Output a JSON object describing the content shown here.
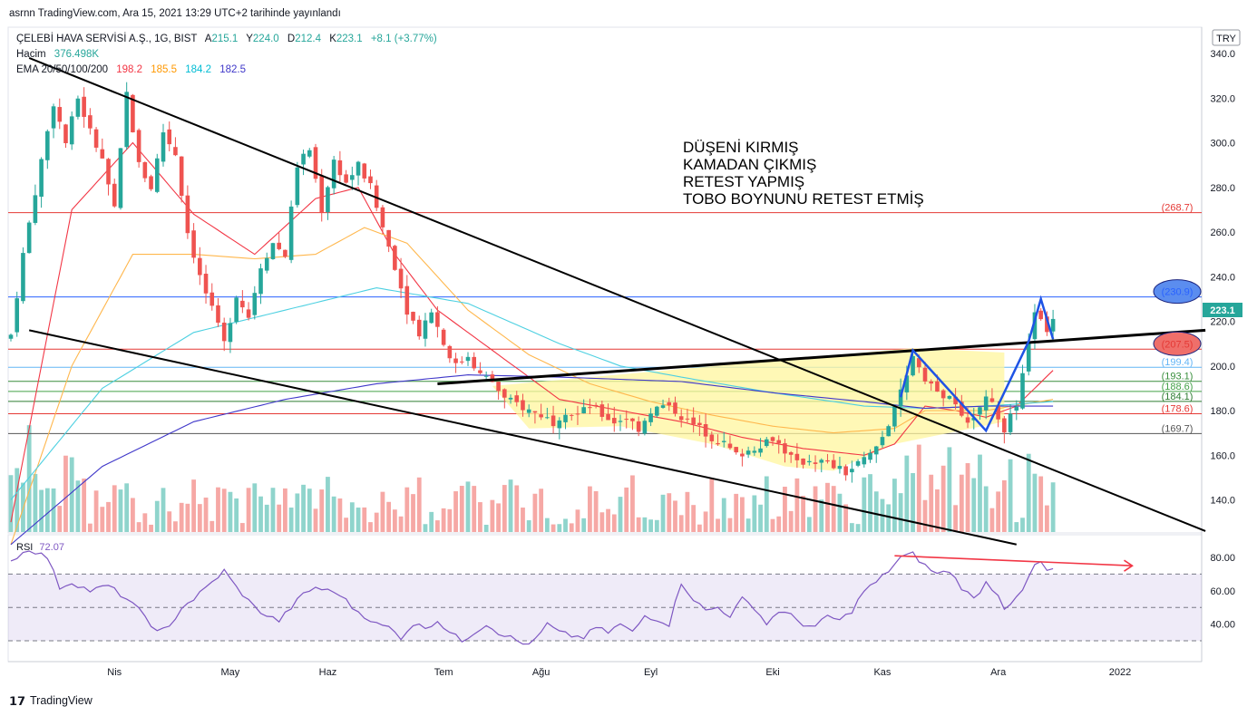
{
  "header": "asrnn TradingView.com, Ara 15, 2021 13:29 UTC+2 tarihinde yayınlandı",
  "legend": {
    "symbol": "ÇELEBİ HAVA SERVİSİ A.Ş., 1G, BIST",
    "ohlc": [
      {
        "k": "A",
        "v": "215.1"
      },
      {
        "k": "Y",
        "v": "224.0"
      },
      {
        "k": "D",
        "v": "212.4"
      },
      {
        "k": "K",
        "v": "223.1"
      }
    ],
    "change": "+8.1 (+3.77%)",
    "volume_label": "Hacim",
    "volume_value": "376.498K",
    "ema_label": "EMA 20/50/100/200",
    "ema_values": [
      {
        "v": "198.2",
        "color": "#f23645"
      },
      {
        "v": "185.5",
        "color": "#ff9800"
      },
      {
        "v": "184.2",
        "color": "#00bcd4"
      },
      {
        "v": "182.5",
        "color": "#3f37c9"
      }
    ]
  },
  "currency": "TRY",
  "annotation": [
    "DÜŞENİ KIRMIŞ",
    "KAMADAN ÇIKMIŞ",
    "RETEST YAPMIŞ",
    "TOBO BOYNUNU RETEST ETMİŞ"
  ],
  "price_tag": "223.1",
  "rsi_label": "RSI",
  "rsi_value": "72.07",
  "brand": "TradingView",
  "colors": {
    "up": "#26a69a",
    "down": "#ef5350",
    "rsi": "#7e57c2",
    "tobo": "#fff59d",
    "pattern": "#1e53e5"
  },
  "chart_data": {
    "type": "candlestick",
    "x_ticks": [
      "Nis",
      "May",
      "Haz",
      "Tem",
      "Ağu",
      "Eyl",
      "Eki",
      "Kas",
      "Ara",
      "2022"
    ],
    "y_range": [
      120,
      345
    ],
    "y_ticks": [
      140,
      160,
      180,
      200,
      220,
      240,
      260,
      280,
      300,
      320,
      340
    ],
    "rsi_ticks": [
      40,
      60,
      80
    ],
    "rsi_levels": [
      30,
      50,
      70
    ],
    "levels": [
      {
        "value": 268.7,
        "label": "(268.7)",
        "color": "#e53935"
      },
      {
        "value": 230.9,
        "label": "(230.9)",
        "color": "#2962ff",
        "badge": true
      },
      {
        "value": 207.5,
        "label": "(207.5)",
        "color": "#e53935",
        "badge": true
      },
      {
        "value": 199.4,
        "label": "(199.4)",
        "color": "#64b5f6"
      },
      {
        "value": 193.1,
        "label": "(193.1)",
        "color": "#388e3c"
      },
      {
        "value": 188.6,
        "label": "(188.6)",
        "color": "#43a047"
      },
      {
        "value": 184.1,
        "label": "(184.1)",
        "color": "#2e7d32"
      },
      {
        "value": 178.6,
        "label": "(178.6)",
        "color": "#e53935"
      },
      {
        "value": 169.7,
        "label": "(169.7)",
        "color": "#555555"
      }
    ],
    "close_keypoints": [
      [
        0,
        214
      ],
      [
        2,
        250
      ],
      [
        5,
        292
      ],
      [
        7,
        318
      ],
      [
        9,
        300
      ],
      [
        11,
        320
      ],
      [
        13,
        305
      ],
      [
        15,
        292
      ],
      [
        17,
        270
      ],
      [
        19,
        322
      ],
      [
        21,
        290
      ],
      [
        23,
        280
      ],
      [
        25,
        305
      ],
      [
        27,
        295
      ],
      [
        29,
        260
      ],
      [
        31,
        240
      ],
      [
        33,
        225
      ],
      [
        35,
        210
      ],
      [
        37,
        232
      ],
      [
        39,
        222
      ],
      [
        41,
        245
      ],
      [
        43,
        255
      ],
      [
        45,
        250
      ],
      [
        47,
        290
      ],
      [
        49,
        297
      ],
      [
        51,
        270
      ],
      [
        53,
        292
      ],
      [
        55,
        282
      ],
      [
        57,
        290
      ],
      [
        59,
        280
      ],
      [
        61,
        262
      ],
      [
        63,
        245
      ],
      [
        65,
        225
      ],
      [
        67,
        215
      ],
      [
        69,
        225
      ],
      [
        71,
        210
      ],
      [
        73,
        200
      ],
      [
        75,
        205
      ],
      [
        77,
        196
      ],
      [
        79,
        193
      ],
      [
        81,
        185
      ],
      [
        83,
        183
      ],
      [
        85,
        180
      ],
      [
        87,
        178
      ],
      [
        89,
        175
      ],
      [
        91,
        180
      ],
      [
        93,
        178
      ],
      [
        95,
        182
      ],
      [
        97,
        178
      ],
      [
        99,
        175
      ],
      [
        101,
        177
      ],
      [
        103,
        172
      ],
      [
        105,
        180
      ],
      [
        107,
        182
      ],
      [
        109,
        180
      ],
      [
        111,
        175
      ],
      [
        113,
        172
      ],
      [
        115,
        168
      ],
      [
        117,
        165
      ],
      [
        119,
        160
      ],
      [
        121,
        162
      ],
      [
        123,
        165
      ],
      [
        125,
        168
      ],
      [
        127,
        162
      ],
      [
        129,
        156
      ],
      [
        131,
        158
      ],
      [
        133,
        157
      ],
      [
        135,
        155
      ],
      [
        137,
        152
      ],
      [
        139,
        156
      ],
      [
        141,
        160
      ],
      [
        143,
        168
      ],
      [
        145,
        180
      ],
      [
        147,
        195
      ],
      [
        148,
        205
      ],
      [
        150,
        195
      ],
      [
        152,
        188
      ],
      [
        154,
        185
      ],
      [
        156,
        178
      ],
      [
        158,
        175
      ],
      [
        160,
        188
      ],
      [
        162,
        176
      ],
      [
        163,
        172
      ],
      [
        165,
        182
      ],
      [
        166,
        195
      ],
      [
        167,
        210
      ],
      [
        168,
        225
      ],
      [
        169,
        220
      ],
      [
        170,
        215
      ],
      [
        171,
        223
      ]
    ],
    "ema20": [
      [
        0,
        130
      ],
      [
        10,
        270
      ],
      [
        20,
        300
      ],
      [
        30,
        268
      ],
      [
        40,
        250
      ],
      [
        50,
        275
      ],
      [
        57,
        280
      ],
      [
        63,
        250
      ],
      [
        70,
        225
      ],
      [
        80,
        205
      ],
      [
        90,
        185
      ],
      [
        100,
        180
      ],
      [
        110,
        175
      ],
      [
        120,
        168
      ],
      [
        130,
        163
      ],
      [
        140,
        160
      ],
      [
        145,
        165
      ],
      [
        150,
        182
      ],
      [
        155,
        180
      ],
      [
        160,
        177
      ],
      [
        165,
        182
      ],
      [
        171,
        198
      ]
    ],
    "ema50": [
      [
        0,
        120
      ],
      [
        10,
        200
      ],
      [
        20,
        250
      ],
      [
        30,
        250
      ],
      [
        40,
        248
      ],
      [
        50,
        250
      ],
      [
        58,
        262
      ],
      [
        65,
        255
      ],
      [
        75,
        225
      ],
      [
        85,
        205
      ],
      [
        95,
        192
      ],
      [
        105,
        184
      ],
      [
        115,
        178
      ],
      [
        125,
        173
      ],
      [
        135,
        170
      ],
      [
        145,
        172
      ],
      [
        150,
        180
      ],
      [
        160,
        180
      ],
      [
        171,
        185
      ]
    ],
    "ema100": [
      [
        0,
        140
      ],
      [
        15,
        190
      ],
      [
        30,
        215
      ],
      [
        45,
        225
      ],
      [
        60,
        235
      ],
      [
        75,
        228
      ],
      [
        90,
        210
      ],
      [
        100,
        200
      ],
      [
        110,
        195
      ],
      [
        125,
        188
      ],
      [
        140,
        182
      ],
      [
        150,
        181
      ],
      [
        160,
        182
      ],
      [
        171,
        184
      ]
    ],
    "ema200": [
      [
        0,
        120
      ],
      [
        15,
        155
      ],
      [
        30,
        175
      ],
      [
        45,
        185
      ],
      [
        60,
        192
      ],
      [
        75,
        196
      ],
      [
        90,
        195
      ],
      [
        100,
        194
      ],
      [
        110,
        193
      ],
      [
        125,
        188
      ],
      [
        140,
        184
      ],
      [
        150,
        181
      ],
      [
        160,
        182
      ],
      [
        171,
        182
      ]
    ],
    "rsi_keypoints": [
      [
        0,
        78
      ],
      [
        3,
        85
      ],
      [
        6,
        80
      ],
      [
        8,
        62
      ],
      [
        10,
        65
      ],
      [
        13,
        60
      ],
      [
        16,
        63
      ],
      [
        19,
        55
      ],
      [
        22,
        45
      ],
      [
        24,
        35
      ],
      [
        26,
        38
      ],
      [
        28,
        50
      ],
      [
        30,
        55
      ],
      [
        33,
        65
      ],
      [
        35,
        72
      ],
      [
        37,
        62
      ],
      [
        40,
        50
      ],
      [
        42,
        45
      ],
      [
        44,
        42
      ],
      [
        46,
        50
      ],
      [
        48,
        58
      ],
      [
        50,
        62
      ],
      [
        52,
        60
      ],
      [
        54,
        58
      ],
      [
        56,
        50
      ],
      [
        58,
        45
      ],
      [
        60,
        40
      ],
      [
        62,
        38
      ],
      [
        64,
        32
      ],
      [
        66,
        40
      ],
      [
        68,
        38
      ],
      [
        70,
        42
      ],
      [
        72,
        35
      ],
      [
        74,
        30
      ],
      [
        76,
        35
      ],
      [
        78,
        40
      ],
      [
        80,
        35
      ],
      [
        82,
        32
      ],
      [
        84,
        28
      ],
      [
        86,
        30
      ],
      [
        88,
        40
      ],
      [
        90,
        35
      ],
      [
        92,
        33
      ],
      [
        94,
        32
      ],
      [
        96,
        38
      ],
      [
        98,
        35
      ],
      [
        100,
        40
      ],
      [
        102,
        35
      ],
      [
        104,
        45
      ],
      [
        106,
        43
      ],
      [
        108,
        40
      ],
      [
        110,
        65
      ],
      [
        112,
        55
      ],
      [
        114,
        48
      ],
      [
        116,
        50
      ],
      [
        118,
        45
      ],
      [
        120,
        55
      ],
      [
        122,
        50
      ],
      [
        124,
        40
      ],
      [
        126,
        48
      ],
      [
        128,
        45
      ],
      [
        130,
        40
      ],
      [
        132,
        38
      ],
      [
        134,
        45
      ],
      [
        136,
        42
      ],
      [
        138,
        48
      ],
      [
        140,
        60
      ],
      [
        142,
        65
      ],
      [
        144,
        72
      ],
      [
        146,
        80
      ],
      [
        148,
        82
      ],
      [
        150,
        75
      ],
      [
        152,
        70
      ],
      [
        154,
        72
      ],
      [
        156,
        62
      ],
      [
        158,
        55
      ],
      [
        160,
        65
      ],
      [
        162,
        58
      ],
      [
        163,
        50
      ],
      [
        165,
        55
      ],
      [
        166,
        60
      ],
      [
        167,
        68
      ],
      [
        168,
        75
      ],
      [
        169,
        77
      ],
      [
        170,
        72
      ],
      [
        171,
        72
      ]
    ]
  }
}
